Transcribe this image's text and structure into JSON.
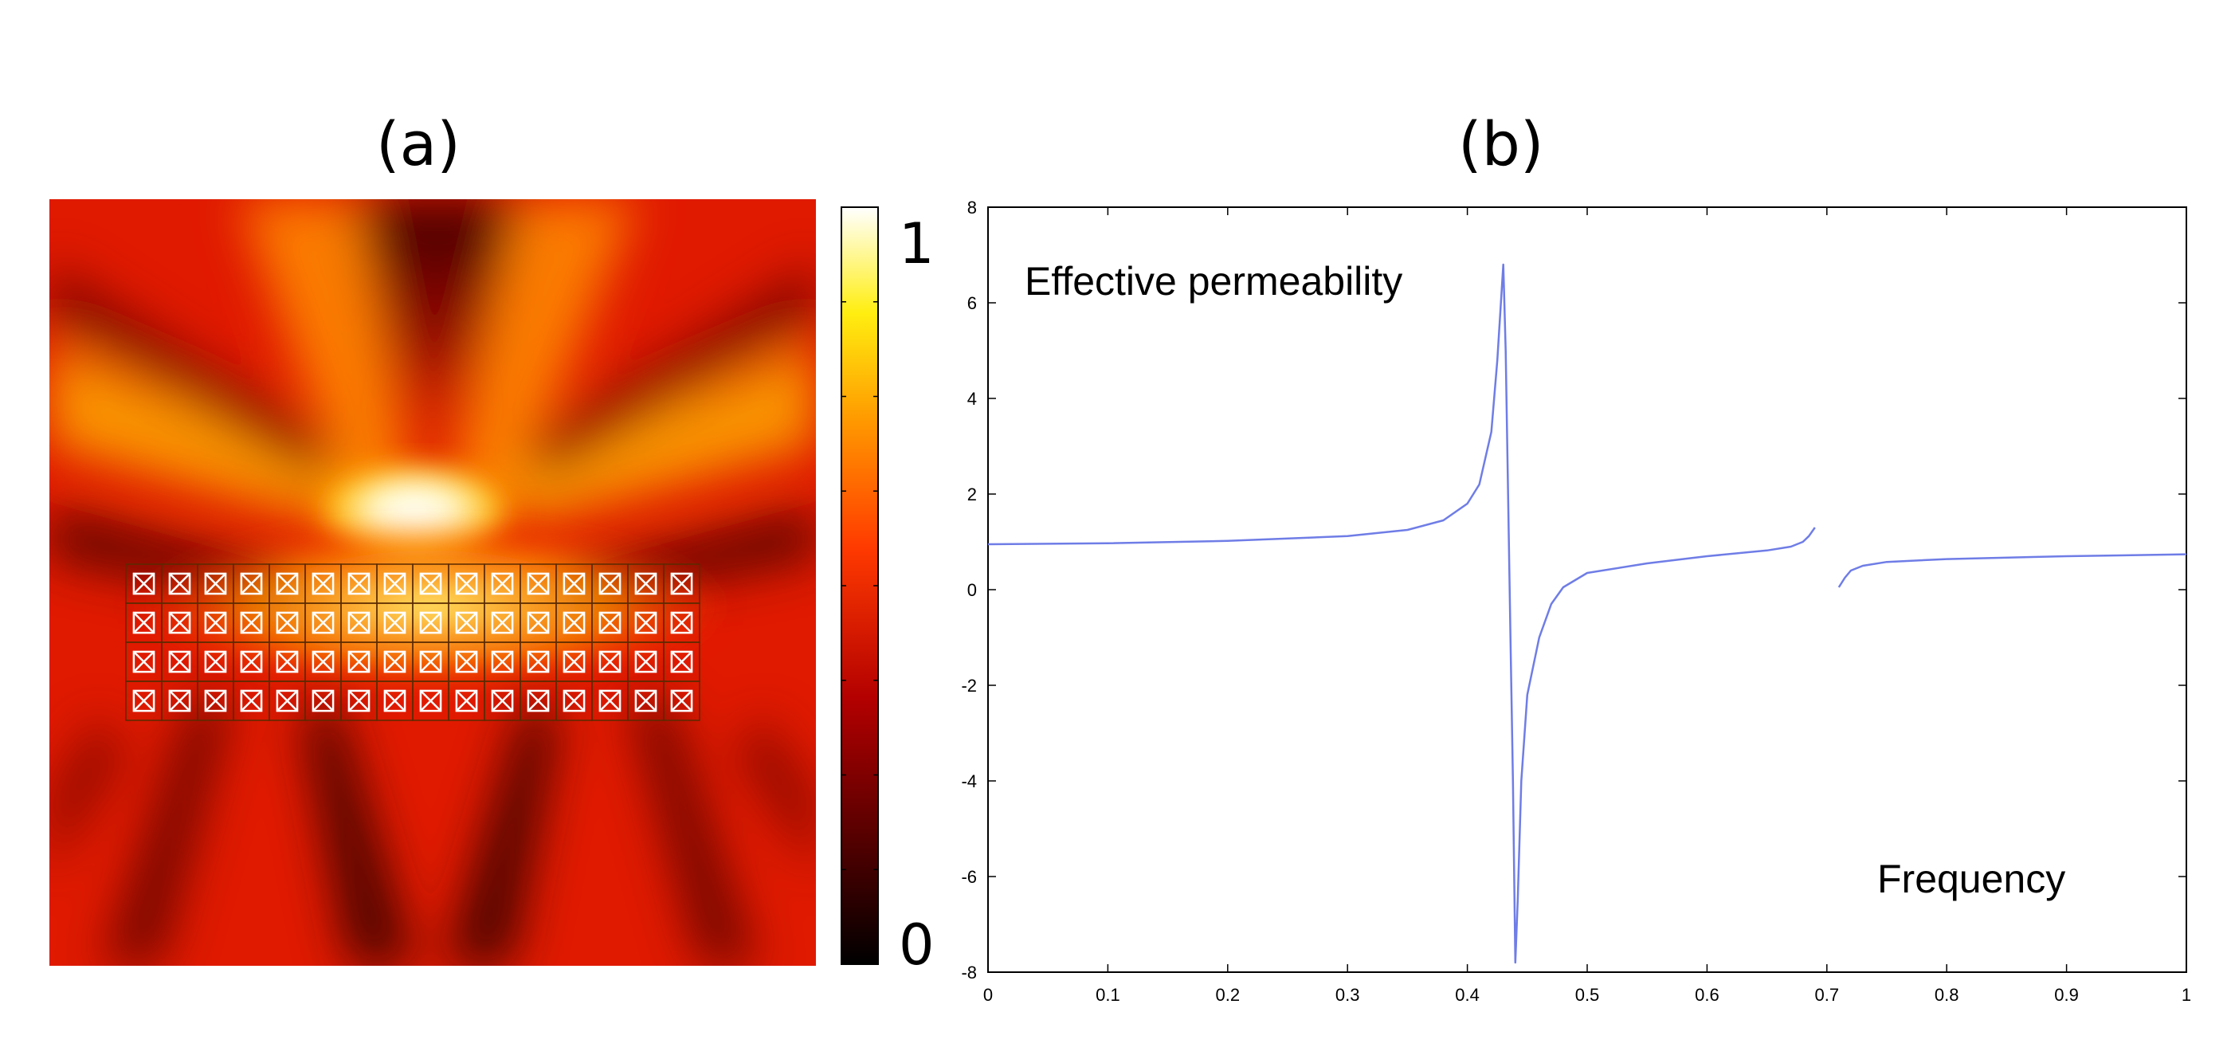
{
  "panel_a": {
    "label": "(a)",
    "colorbar": {
      "max_label": "1",
      "min_label": "0",
      "colormap": "hot"
    },
    "array": {
      "rows": 4,
      "cols": 16
    }
  },
  "panel_b": {
    "label": "(b)"
  },
  "colors": {
    "line": "#6f7de6",
    "axis": "#000000",
    "background": "#ffffff"
  },
  "chart_data": {
    "type": "line",
    "title": "",
    "ylabel": "Effective permeability",
    "xlabel": "Frequency",
    "xlim": [
      0,
      1
    ],
    "ylim": [
      -8,
      8
    ],
    "xticks": [
      0,
      0.1,
      0.2,
      0.3,
      0.4,
      0.5,
      0.6,
      0.7,
      0.8,
      0.9,
      1
    ],
    "xtick_labels": [
      "0",
      "0.1",
      "0.2",
      "0.3",
      "0.4",
      "0.5",
      "0.6",
      "0.7",
      "0.8",
      "0.9",
      "1"
    ],
    "yticks": [
      -8,
      -6,
      -4,
      -2,
      0,
      2,
      4,
      6,
      8
    ],
    "ytick_labels": [
      "-8",
      "-6",
      "-4",
      "-2",
      "0",
      "2",
      "4",
      "6",
      "8"
    ],
    "series": [
      {
        "name": "Effective permeability",
        "segments": [
          {
            "x": [
              0,
              0.1,
              0.2,
              0.3,
              0.35,
              0.38,
              0.4,
              0.41,
              0.42,
              0.425,
              0.43,
              0.432,
              0.434,
              0.436,
              0.438,
              0.44,
              0.442,
              0.445,
              0.45,
              0.46,
              0.47,
              0.48,
              0.5,
              0.55,
              0.6,
              0.65,
              0.67,
              0.68,
              0.685,
              0.69
            ],
            "y": [
              0.95,
              0.97,
              1.02,
              1.12,
              1.25,
              1.45,
              1.8,
              2.2,
              3.3,
              4.8,
              6.8,
              5.0,
              2.0,
              -1.0,
              -4.0,
              -7.8,
              -6.5,
              -4.0,
              -2.2,
              -1.0,
              -0.3,
              0.05,
              0.35,
              0.55,
              0.7,
              0.82,
              0.9,
              1.0,
              1.12,
              1.3
            ]
          },
          {
            "x": [
              0.71,
              0.715,
              0.72,
              0.73,
              0.75,
              0.8,
              0.9,
              1.0
            ],
            "y": [
              0.05,
              0.25,
              0.4,
              0.5,
              0.58,
              0.64,
              0.7,
              0.74
            ]
          }
        ]
      }
    ]
  }
}
